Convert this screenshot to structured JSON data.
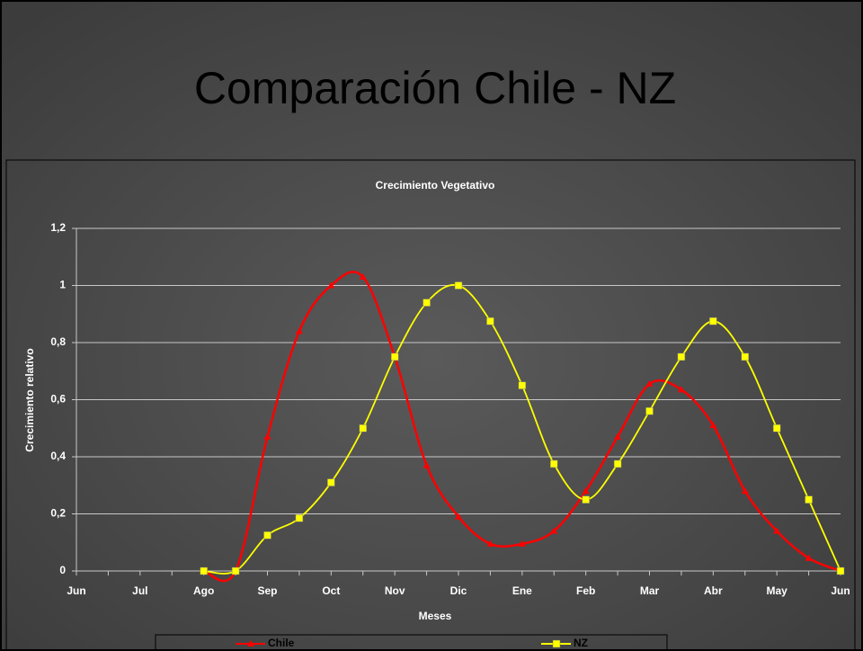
{
  "slide_title": "Comparación Chile - NZ",
  "chart_data": {
    "type": "line",
    "title": "Crecimiento Vegetativo",
    "x_label": "Meses",
    "y_label": "Crecimiento relativo",
    "categories": [
      "Jun",
      null,
      "Jul",
      null,
      "Ago",
      null,
      "Sep",
      null,
      "Oct",
      null,
      "Nov",
      null,
      "Dic",
      null,
      "Ene",
      null,
      "Feb",
      null,
      "Mar",
      null,
      "Abr",
      null,
      "May",
      null,
      "Jun"
    ],
    "series": [
      {
        "name": "Chile",
        "color": "#ff0000",
        "marker": "triangle",
        "values": [
          null,
          null,
          null,
          null,
          0,
          0,
          0.47,
          0.84,
          1.0,
          1.03,
          0.75,
          0.37,
          0.19,
          0.095,
          0.095,
          0.14,
          0.28,
          0.47,
          0.655,
          0.635,
          0.51,
          0.28,
          0.14,
          0.045,
          0
        ]
      },
      {
        "name": "NZ",
        "color": "#ffff00",
        "marker": "square",
        "values": [
          null,
          null,
          null,
          null,
          0,
          0,
          0.125,
          0.185,
          0.31,
          0.5,
          0.75,
          0.94,
          1.0,
          0.875,
          0.65,
          0.375,
          0.25,
          0.375,
          0.56,
          0.75,
          0.875,
          0.75,
          0.5,
          0.25,
          0
        ]
      }
    ],
    "ylim": [
      0,
      1.2
    ],
    "yticks": [
      0,
      {
        "value": 0.2,
        "label": "0,2"
      },
      {
        "value": 0.4,
        "label": "0,4"
      },
      {
        "value": 0.6,
        "label": "0,6"
      },
      {
        "value": 0.8,
        "label": "0,8"
      },
      1,
      {
        "value": 1.2,
        "label": "1,2"
      }
    ],
    "grid": true,
    "smooth": true,
    "legend": "bottom"
  }
}
